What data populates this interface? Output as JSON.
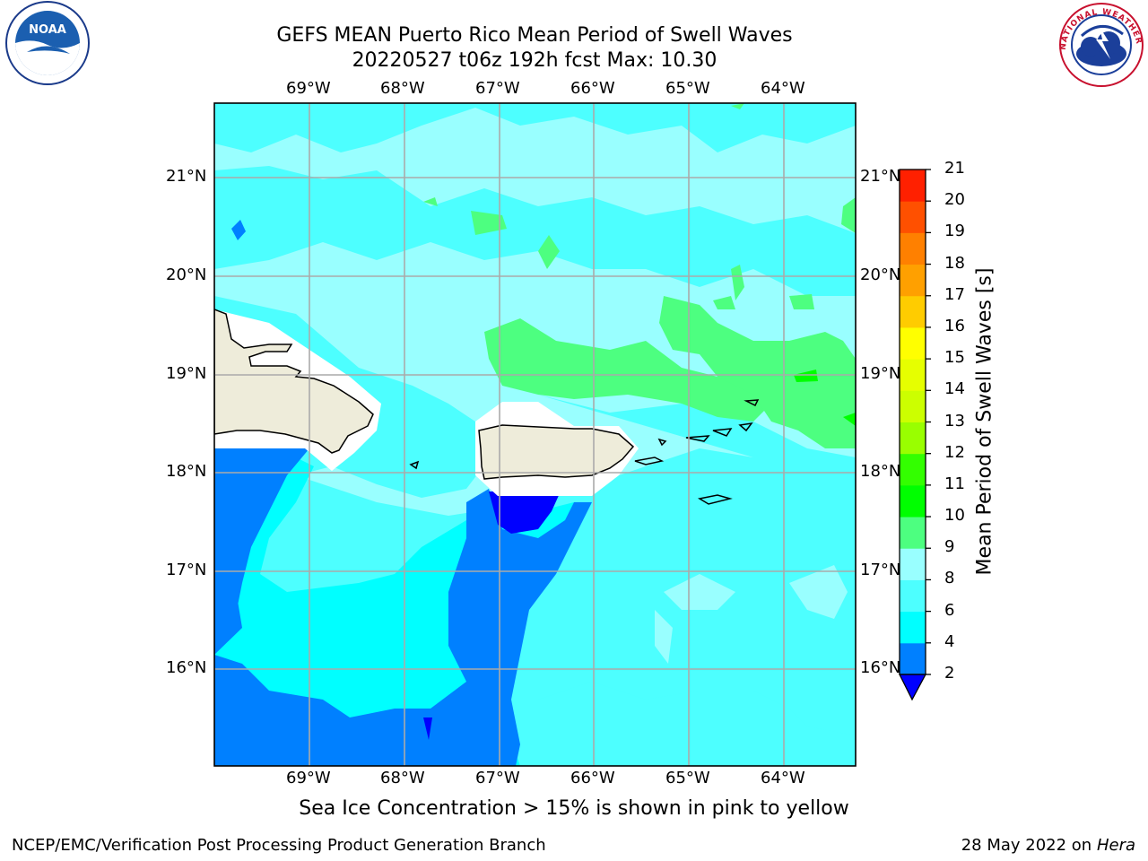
{
  "header": {
    "line1": "GEFS MEAN Puerto Rico Mean Period of Swell Waves",
    "line2": "20220527 t06z 192h fcst   Max: 10.30"
  },
  "map": {
    "lon_labels": [
      "69°W",
      "68°W",
      "67°W",
      "66°W",
      "65°W",
      "64°W"
    ],
    "lat_labels": [
      "21°N",
      "20°N",
      "19°N",
      "18°N",
      "17°N",
      "16°N"
    ],
    "land_color": "#eeecda",
    "coast_color": "#000000"
  },
  "colorbar": {
    "label": "Mean Period of Swell Waves [s]",
    "ticks": [
      "2",
      "4",
      "6",
      "8",
      "9",
      "10",
      "11",
      "12",
      "13",
      "14",
      "15",
      "16",
      "17",
      "18",
      "19",
      "20",
      "21"
    ],
    "colors": [
      "#0080ff",
      "#00ffff",
      "#4dffff",
      "#99ffff",
      "#4dff80",
      "#00ff00",
      "#33ff00",
      "#99ff00",
      "#ccff00",
      "#e6ff00",
      "#ffff00",
      "#ffcc00",
      "#ffa000",
      "#ff8000",
      "#ff5000",
      "#ff2000"
    ],
    "under_color": "#0000ff"
  },
  "footer": {
    "note": "Sea Ice Concentration > 15% is shown in pink to yellow",
    "credit_left": "NCEP/EMC/Verification Post Processing Product Generation Branch",
    "credit_date": "28 May 2022 on",
    "credit_host": "Hera"
  },
  "logos": {
    "noaa_text": "NOAA",
    "nws_text": "NATIONAL WEATHER SERVICE"
  }
}
